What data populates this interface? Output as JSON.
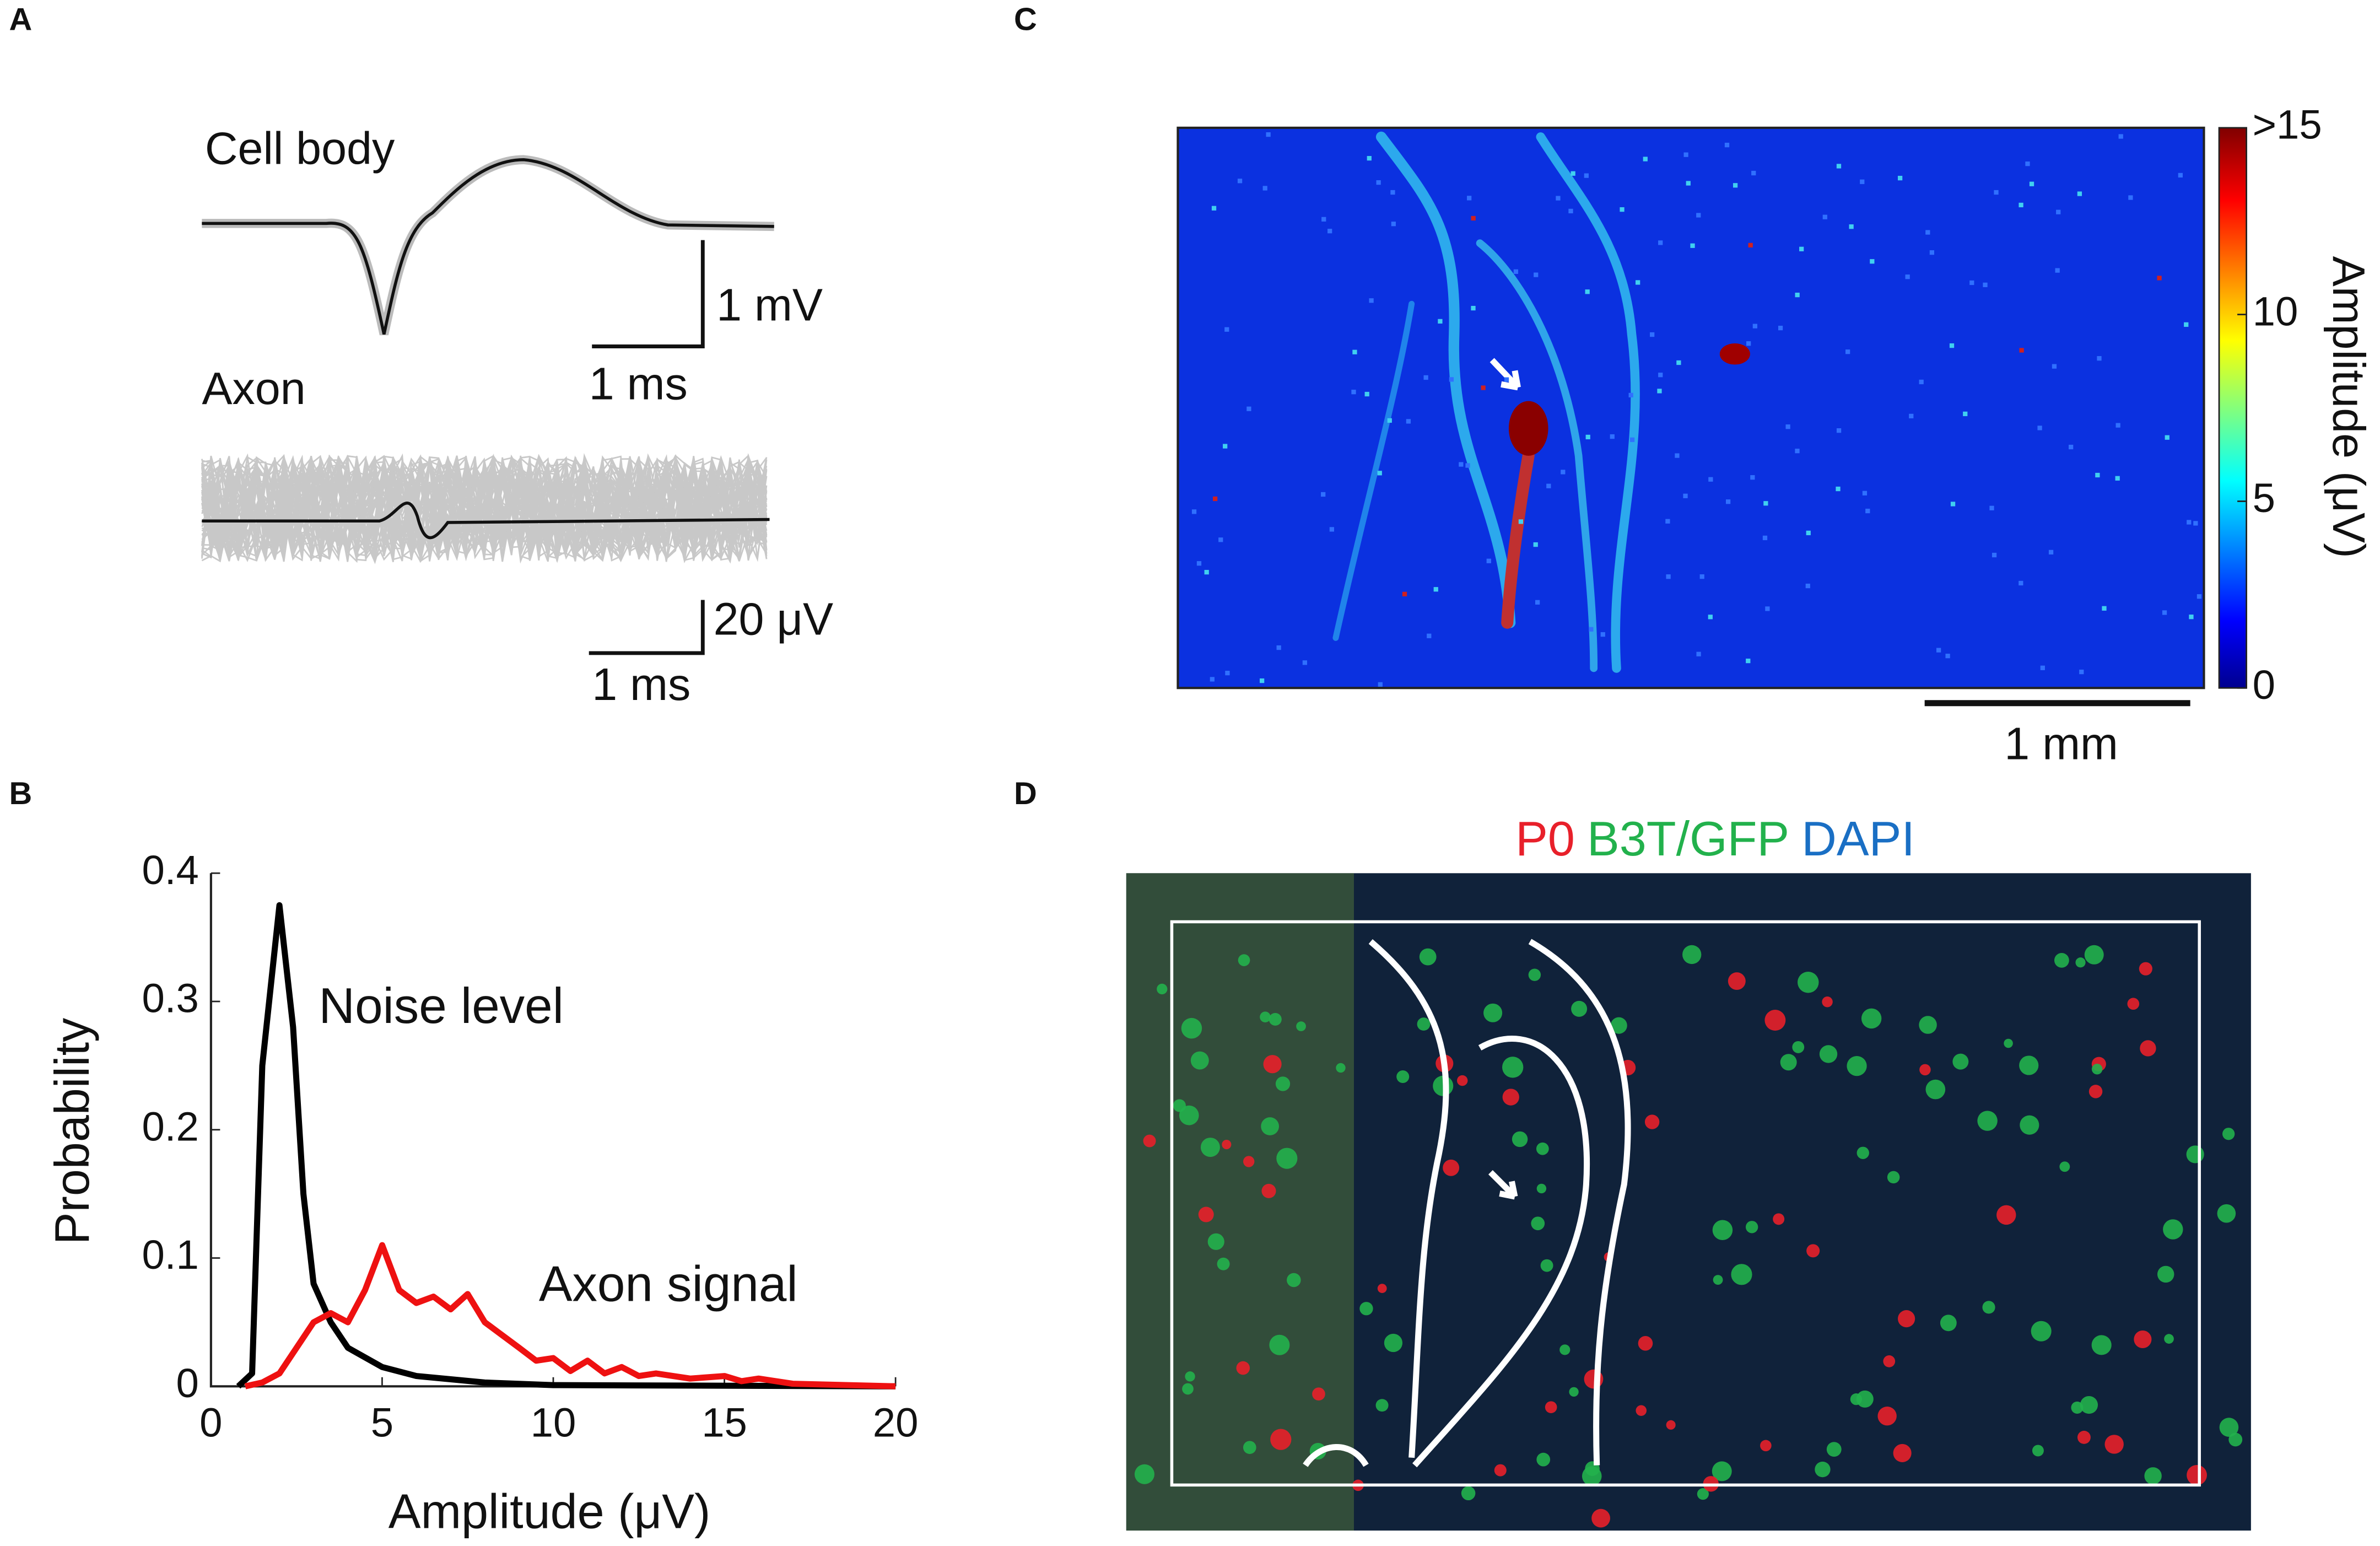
{
  "panel_labels": [
    "A",
    "B",
    "C",
    "D"
  ],
  "panel_a": {
    "cell_label": "Cell body",
    "cell_scale_y": "1 mV",
    "cell_scale_x": "1 ms",
    "axon_label": "Axon",
    "axon_scale_y": "20 μV",
    "axon_scale_x": "1 ms"
  },
  "chart_data": {
    "type": "line",
    "xlabel": "Amplitude (μV)",
    "ylabel": "Probability",
    "xlim": [
      0,
      20
    ],
    "ylim": [
      0,
      0.4
    ],
    "xticks": [
      0,
      5,
      10,
      15,
      20
    ],
    "yticks": [
      0,
      0.1,
      0.2,
      0.3,
      0.4
    ],
    "series": [
      {
        "name": "Noise level",
        "color": "#000000",
        "x": [
          0.8,
          1.2,
          1.5,
          2,
          2.4,
          2.7,
          3,
          3.5,
          4,
          5,
          6,
          8,
          10,
          20
        ],
        "values": [
          0,
          0.01,
          0.25,
          0.375,
          0.28,
          0.15,
          0.08,
          0.05,
          0.03,
          0.015,
          0.008,
          0.003,
          0.001,
          0
        ]
      },
      {
        "name": "Axon signal",
        "color": "#ee1111",
        "x": [
          1,
          1.5,
          2,
          2.5,
          3,
          3.5,
          4,
          4.5,
          5,
          5.5,
          6,
          6.5,
          7,
          7.5,
          8,
          8.5,
          9,
          9.5,
          10,
          10.5,
          11,
          11.5,
          12,
          12.5,
          13,
          14,
          15,
          15.5,
          16,
          17,
          20
        ],
        "values": [
          0,
          0.003,
          0.01,
          0.03,
          0.05,
          0.057,
          0.05,
          0.075,
          0.11,
          0.075,
          0.065,
          0.07,
          0.06,
          0.072,
          0.05,
          0.04,
          0.03,
          0.02,
          0.022,
          0.012,
          0.02,
          0.01,
          0.015,
          0.008,
          0.01,
          0.006,
          0.008,
          0.004,
          0.006,
          0.002,
          0
        ]
      }
    ]
  },
  "panel_c": {
    "colorbar_label": "Amplitude (μV)",
    "colorbar_lim": [
      0,
      15
    ],
    "colorbar_ticks": [
      {
        "value": 15,
        "label": ">15"
      },
      10,
      5,
      0
    ],
    "scale_bar": "1 mm"
  },
  "panel_d": {
    "channels": [
      {
        "name": "P0",
        "color": "#e8202a"
      },
      {
        "name": "B3T/GFP",
        "color": "#22b14c"
      },
      {
        "name": "DAPI",
        "color": "#1a6fc4"
      }
    ]
  }
}
